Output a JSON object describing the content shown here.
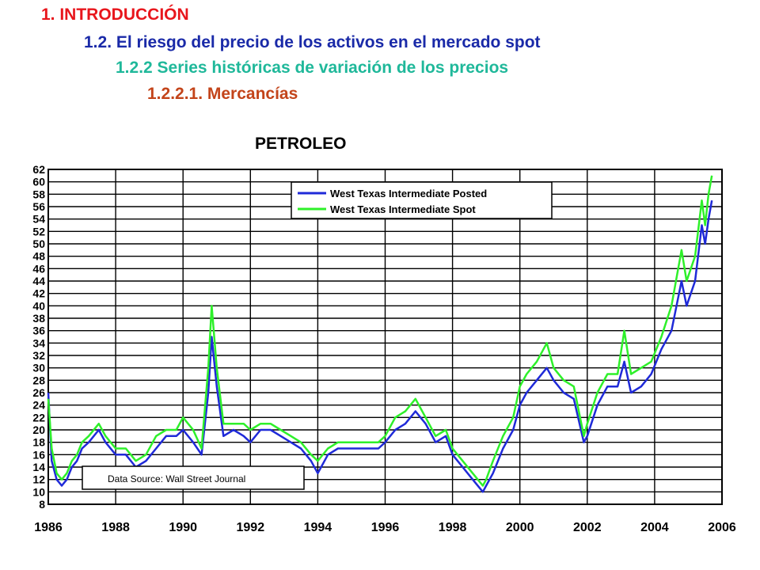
{
  "headings": {
    "h1": {
      "text": "1. INTRODUCCIÓN",
      "color": "#e8161c"
    },
    "h2": {
      "text": "1.2. El riesgo del precio de los activos en el mercado spot",
      "color": "#1a2aa8"
    },
    "h3": {
      "text": "1.2.2 Series históricas de variación de los precios",
      "color": "#1fb89a"
    },
    "h4": {
      "text": "1.2.2.1. Mercancías",
      "color": "#c3441a"
    }
  },
  "chart_data": {
    "type": "line",
    "title": "PETROLEO",
    "xlabel": "",
    "ylabel": "",
    "xlim": [
      1986,
      2006
    ],
    "ylim": [
      8,
      62
    ],
    "x_ticks": [
      1986,
      1988,
      1990,
      1992,
      1994,
      1996,
      1998,
      2000,
      2002,
      2004,
      2006
    ],
    "y_ticks": [
      8,
      10,
      12,
      14,
      16,
      18,
      20,
      22,
      24,
      26,
      28,
      30,
      32,
      34,
      36,
      38,
      40,
      42,
      44,
      46,
      48,
      50,
      52,
      54,
      56,
      58,
      60,
      62
    ],
    "grid": true,
    "legend": {
      "position": "top-right",
      "entries": [
        "West Texas Intermediate Posted",
        "West Texas Intermediate Spot"
      ]
    },
    "annotation": "Data Source:  Wall Street Journal",
    "series": [
      {
        "name": "West Texas Intermediate Posted",
        "color": "#1f2ad8",
        "x": [
          1986.0,
          1986.1,
          1986.25,
          1986.4,
          1986.55,
          1986.7,
          1986.85,
          1987.0,
          1987.2,
          1987.5,
          1987.7,
          1988.0,
          1988.3,
          1988.6,
          1988.9,
          1989.2,
          1989.5,
          1989.8,
          1990.0,
          1990.3,
          1990.55,
          1990.75,
          1990.85,
          1991.0,
          1991.2,
          1991.5,
          1991.8,
          1992.0,
          1992.3,
          1992.6,
          1992.9,
          1993.2,
          1993.5,
          1993.8,
          1994.0,
          1994.3,
          1994.6,
          1994.9,
          1995.2,
          1995.5,
          1995.8,
          1996.0,
          1996.3,
          1996.6,
          1996.9,
          1997.2,
          1997.5,
          1997.8,
          1998.0,
          1998.3,
          1998.6,
          1998.9,
          1999.0,
          1999.2,
          1999.5,
          1999.8,
          2000.0,
          2000.2,
          2000.5,
          2000.8,
          2001.0,
          2001.3,
          2001.6,
          2001.9,
          2002.0,
          2002.3,
          2002.6,
          2002.9,
          2003.1,
          2003.3,
          2003.6,
          2003.9,
          2004.2,
          2004.5,
          2004.8,
          2004.95,
          2005.2,
          2005.4,
          2005.5,
          2005.6,
          2005.7
        ],
        "values": [
          26,
          15,
          12,
          11,
          12,
          14,
          15,
          17,
          18,
          20,
          18,
          16,
          16,
          14,
          15,
          17,
          19,
          19,
          20,
          18,
          16,
          26,
          35,
          27,
          19,
          20,
          19,
          18,
          20,
          20,
          19,
          18,
          17,
          15,
          13,
          16,
          17,
          17,
          17,
          17,
          17,
          18,
          20,
          21,
          23,
          21,
          18,
          19,
          16,
          14,
          12,
          10,
          11,
          13,
          17,
          20,
          24,
          26,
          28,
          30,
          28,
          26,
          25,
          18,
          19,
          24,
          27,
          27,
          31,
          26,
          27,
          29,
          33,
          36,
          44,
          40,
          44,
          53,
          50,
          54,
          57
        ]
      },
      {
        "name": "West Texas Intermediate Spot",
        "color": "#2ef02a",
        "x": [
          1986.0,
          1986.1,
          1986.25,
          1986.4,
          1986.55,
          1986.7,
          1986.85,
          1987.0,
          1987.2,
          1987.5,
          1987.7,
          1988.0,
          1988.3,
          1988.6,
          1988.9,
          1989.2,
          1989.5,
          1989.8,
          1990.0,
          1990.3,
          1990.55,
          1990.75,
          1990.85,
          1991.0,
          1991.2,
          1991.5,
          1991.8,
          1992.0,
          1992.3,
          1992.6,
          1992.9,
          1993.2,
          1993.5,
          1993.8,
          1994.0,
          1994.3,
          1994.6,
          1994.9,
          1995.2,
          1995.5,
          1995.8,
          1996.0,
          1996.3,
          1996.6,
          1996.9,
          1997.2,
          1997.5,
          1997.8,
          1998.0,
          1998.3,
          1998.6,
          1998.9,
          1999.0,
          1999.2,
          1999.5,
          1999.8,
          2000.0,
          2000.2,
          2000.5,
          2000.8,
          2001.0,
          2001.3,
          2001.6,
          2001.9,
          2002.0,
          2002.3,
          2002.6,
          2002.9,
          2003.1,
          2003.3,
          2003.6,
          2003.9,
          2004.2,
          2004.5,
          2004.8,
          2004.95,
          2005.2,
          2005.4,
          2005.5,
          2005.6,
          2005.7
        ],
        "values": [
          25,
          17,
          13,
          12,
          13,
          15,
          16,
          18,
          19,
          21,
          19,
          17,
          17,
          15,
          16,
          19,
          20,
          20,
          22,
          20,
          17,
          30,
          40,
          30,
          21,
          21,
          21,
          20,
          21,
          21,
          20,
          19,
          18,
          16,
          15,
          17,
          18,
          18,
          18,
          18,
          18,
          19,
          22,
          23,
          25,
          22,
          19,
          20,
          17,
          15,
          13,
          11,
          12,
          15,
          19,
          22,
          27,
          29,
          31,
          34,
          30,
          28,
          27,
          19,
          21,
          26,
          29,
          29,
          36,
          29,
          30,
          31,
          35,
          40,
          49,
          44,
          48,
          57,
          53,
          58,
          61
        ]
      }
    ]
  }
}
